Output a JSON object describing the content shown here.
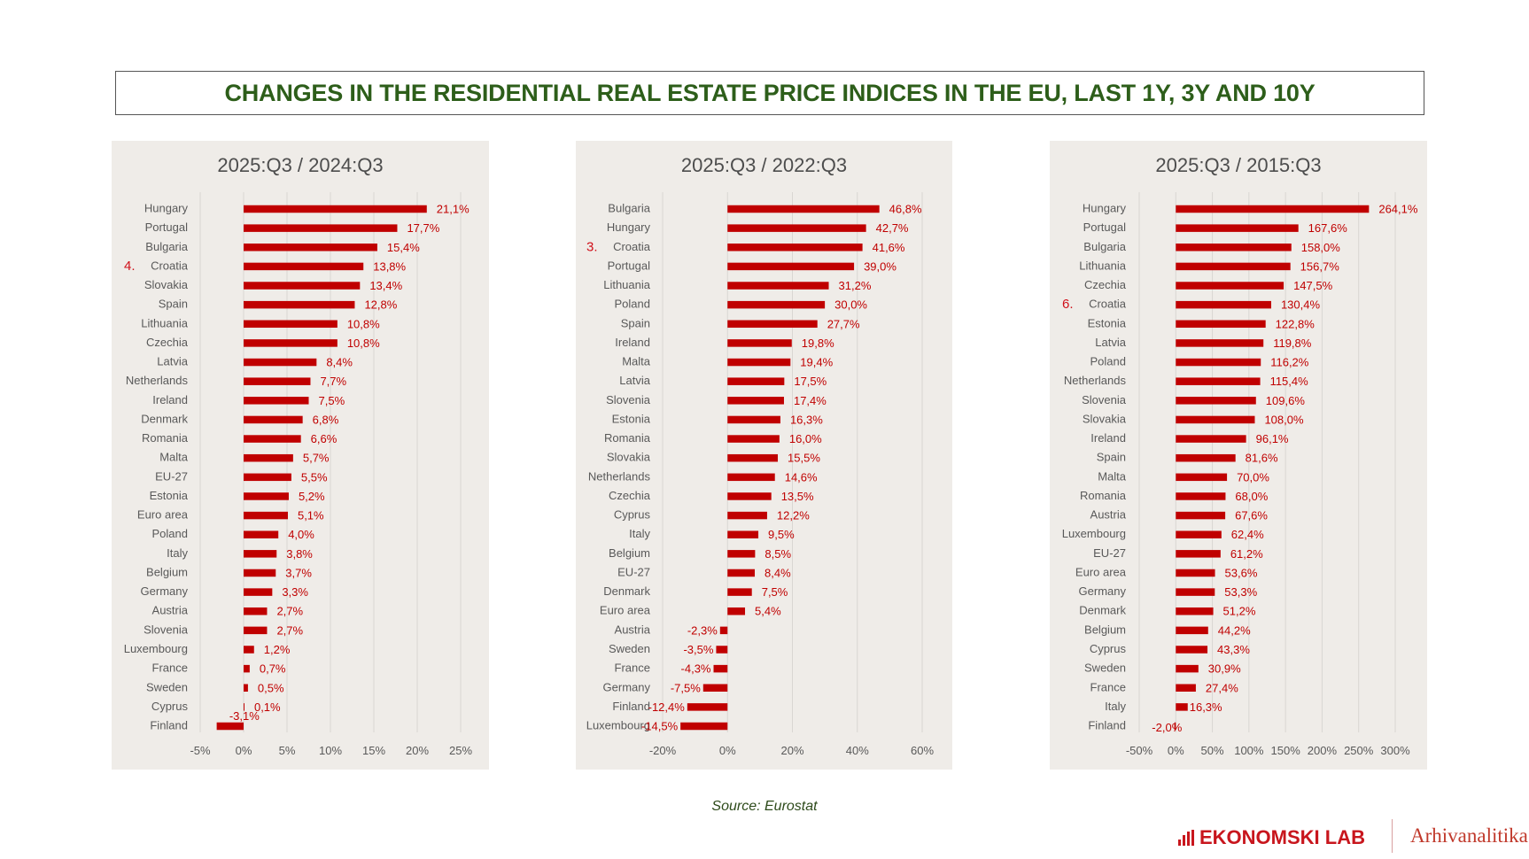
{
  "header": {
    "title": "CHANGES IN THE RESIDENTIAL REAL ESTATE PRICE INDICES IN THE EU, LAST 1Y, 3Y AND 10Y"
  },
  "footer": {
    "source": "Source: Eurostat",
    "brand_primary": "EKONOMSKI LAB",
    "brand_secondary": "Arhivanalitika",
    "brand_icon": "bar-chart-icon"
  },
  "colors": {
    "bar": "#c00000",
    "value_label": "#c00000",
    "rank_marker": "#d0101a",
    "title": "#2d5e1a",
    "panel_background": "#efece8"
  },
  "chart_data": [
    {
      "type": "bar",
      "orientation": "horizontal",
      "title": "2025:Q3 / 2024:Q3",
      "xlabel": "",
      "ylabel": "",
      "xlim": [
        -5,
        25
      ],
      "x_ticks": [
        -5,
        0,
        5,
        10,
        15,
        20,
        25
      ],
      "x_tick_labels": [
        "-5%",
        "0%",
        "5%",
        "10%",
        "15%",
        "20%",
        "25%"
      ],
      "grid": true,
      "highlight": {
        "category": "Croatia",
        "rank_label": "4."
      },
      "categories": [
        "Hungary",
        "Portugal",
        "Bulgaria",
        "Croatia",
        "Slovakia",
        "Spain",
        "Lithuania",
        "Czechia",
        "Latvia",
        "Netherlands",
        "Ireland",
        "Denmark",
        "Romania",
        "Malta",
        "EU-27",
        "Estonia",
        "Euro area",
        "Poland",
        "Italy",
        "Belgium",
        "Germany",
        "Austria",
        "Slovenia",
        "Luxembourg",
        "France",
        "Sweden",
        "Cyprus",
        "Finland"
      ],
      "values": [
        21.1,
        17.7,
        15.4,
        13.8,
        13.4,
        12.8,
        10.8,
        10.8,
        8.4,
        7.7,
        7.5,
        6.8,
        6.6,
        5.7,
        5.5,
        5.2,
        5.1,
        4.0,
        3.8,
        3.7,
        3.3,
        2.7,
        2.7,
        1.2,
        0.7,
        0.5,
        0.1,
        -3.1
      ],
      "value_labels": [
        "21,1%",
        "17,7%",
        "15,4%",
        "13,8%",
        "13,4%",
        "12,8%",
        "10,8%",
        "10,8%",
        "8,4%",
        "7,7%",
        "7,5%",
        "6,8%",
        "6,6%",
        "5,7%",
        "5,5%",
        "5,2%",
        "5,1%",
        "4,0%",
        "3,8%",
        "3,7%",
        "3,3%",
        "2,7%",
        "2,7%",
        "1,2%",
        "0,7%",
        "0,5%",
        "0,1%",
        "-3,1%"
      ]
    },
    {
      "type": "bar",
      "orientation": "horizontal",
      "title": "2025:Q3 / 2022:Q3",
      "xlabel": "",
      "ylabel": "",
      "xlim": [
        -20,
        60
      ],
      "x_ticks": [
        -20,
        0,
        20,
        40,
        60
      ],
      "x_tick_labels": [
        "-20%",
        "0%",
        "20%",
        "40%",
        "60%"
      ],
      "grid": true,
      "highlight": {
        "category": "Croatia",
        "rank_label": "3."
      },
      "categories": [
        "Bulgaria",
        "Hungary",
        "Croatia",
        "Portugal",
        "Lithuania",
        "Poland",
        "Spain",
        "Ireland",
        "Malta",
        "Latvia",
        "Slovenia",
        "Estonia",
        "Romania",
        "Slovakia",
        "Netherlands",
        "Czechia",
        "Cyprus",
        "Italy",
        "Belgium",
        "EU-27",
        "Denmark",
        "Euro area",
        "Austria",
        "Sweden",
        "France",
        "Germany",
        "Finland",
        "Luxembourg"
      ],
      "values": [
        46.8,
        42.7,
        41.6,
        39.0,
        31.2,
        30.0,
        27.7,
        19.8,
        19.4,
        17.5,
        17.4,
        16.3,
        16.0,
        15.5,
        14.6,
        13.5,
        12.2,
        9.5,
        8.5,
        8.4,
        7.5,
        5.4,
        -2.3,
        -3.5,
        -4.3,
        -7.5,
        -12.4,
        -14.5
      ],
      "value_labels": [
        "46,8%",
        "42,7%",
        "41,6%",
        "39,0%",
        "31,2%",
        "30,0%",
        "27,7%",
        "19,8%",
        "19,4%",
        "17,5%",
        "17,4%",
        "16,3%",
        "16,0%",
        "15,5%",
        "14,6%",
        "13,5%",
        "12,2%",
        "9,5%",
        "8,5%",
        "8,4%",
        "7,5%",
        "5,4%",
        "-2,3%",
        "-3,5%",
        "-4,3%",
        "-7,5%",
        "-12,4%",
        "-14,5%"
      ]
    },
    {
      "type": "bar",
      "orientation": "horizontal",
      "title": "2025:Q3 / 2015:Q3",
      "xlabel": "",
      "ylabel": "",
      "xlim": [
        -50,
        300
      ],
      "x_ticks": [
        -50,
        0,
        50,
        100,
        150,
        200,
        250,
        300
      ],
      "x_tick_labels": [
        "-50%",
        "0%",
        "50%",
        "100%",
        "150%",
        "200%",
        "250%",
        "300%"
      ],
      "grid": true,
      "highlight": {
        "category": "Croatia",
        "rank_label": "6."
      },
      "categories": [
        "Hungary",
        "Portugal",
        "Bulgaria",
        "Lithuania",
        "Czechia",
        "Croatia",
        "Estonia",
        "Latvia",
        "Poland",
        "Netherlands",
        "Slovenia",
        "Slovakia",
        "Ireland",
        "Spain",
        "Malta",
        "Romania",
        "Austria",
        "Luxembourg",
        "EU-27",
        "Euro area",
        "Germany",
        "Denmark",
        "Belgium",
        "Cyprus",
        "Sweden",
        "France",
        "Italy",
        "Finland"
      ],
      "values": [
        264.1,
        167.6,
        158.0,
        156.7,
        147.5,
        130.4,
        122.8,
        119.8,
        116.2,
        115.4,
        109.6,
        108.0,
        96.1,
        81.6,
        70.0,
        68.0,
        67.6,
        62.4,
        61.2,
        53.6,
        53.3,
        51.2,
        44.2,
        43.3,
        30.9,
        27.4,
        16.3,
        -2.0
      ],
      "value_labels": [
        "264,1%",
        "167,6%",
        "158,0%",
        "156,7%",
        "147,5%",
        "130,4%",
        "122,8%",
        "119,8%",
        "116,2%",
        "115,4%",
        "109,6%",
        "108,0%",
        "96,1%",
        "81,6%",
        "70,0%",
        "68,0%",
        "67,6%",
        "62,4%",
        "61,2%",
        "53,6%",
        "53,3%",
        "51,2%",
        "44,2%",
        "43,3%",
        "30,9%",
        "27,4%",
        "16,3%",
        "-2,0%"
      ]
    }
  ]
}
